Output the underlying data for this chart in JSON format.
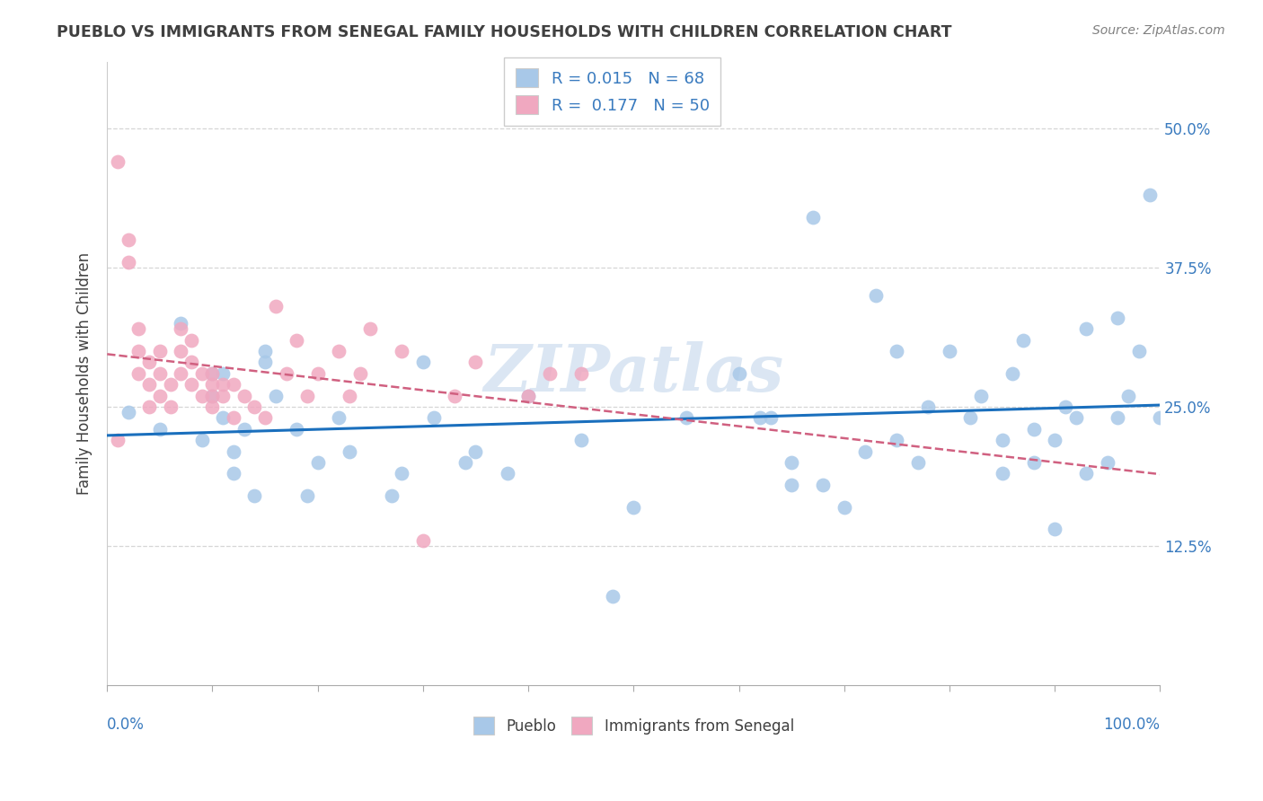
{
  "title": "PUEBLO VS IMMIGRANTS FROM SENEGAL FAMILY HOUSEHOLDS WITH CHILDREN CORRELATION CHART",
  "source": "Source: ZipAtlas.com",
  "ylabel": "Family Households with Children",
  "watermark": "ZIPatlas",
  "xlim": [
    0.0,
    1.0
  ],
  "ylim": [
    0.0,
    0.56
  ],
  "xtick_left_label": "0.0%",
  "xtick_right_label": "100.0%",
  "yticks": [
    0.125,
    0.25,
    0.375,
    0.5
  ],
  "ytick_labels": [
    "12.5%",
    "25.0%",
    "37.5%",
    "50.0%"
  ],
  "pueblo_R": "0.015",
  "pueblo_N": "68",
  "senegal_R": "0.177",
  "senegal_N": "50",
  "pueblo_color": "#a8c8e8",
  "senegal_color": "#f0a8c0",
  "pueblo_line_color": "#1a6fbd",
  "senegal_line_color": "#d06080",
  "legend_pueblo": "Pueblo",
  "legend_senegal": "Immigrants from Senegal",
  "pueblo_scatter_x": [
    0.02,
    0.05,
    0.07,
    0.09,
    0.1,
    0.1,
    0.11,
    0.11,
    0.12,
    0.12,
    0.13,
    0.14,
    0.15,
    0.15,
    0.16,
    0.18,
    0.19,
    0.2,
    0.22,
    0.23,
    0.27,
    0.28,
    0.3,
    0.31,
    0.34,
    0.35,
    0.38,
    0.4,
    0.45,
    0.48,
    0.5,
    0.55,
    0.6,
    0.62,
    0.65,
    0.65,
    0.68,
    0.7,
    0.72,
    0.73,
    0.75,
    0.75,
    0.77,
    0.78,
    0.8,
    0.82,
    0.83,
    0.85,
    0.85,
    0.86,
    0.87,
    0.88,
    0.88,
    0.9,
    0.9,
    0.91,
    0.92,
    0.93,
    0.93,
    0.95,
    0.96,
    0.96,
    0.97,
    0.98,
    0.99,
    1.0,
    0.63,
    0.67
  ],
  "pueblo_scatter_y": [
    0.245,
    0.23,
    0.325,
    0.22,
    0.26,
    0.28,
    0.28,
    0.24,
    0.21,
    0.19,
    0.23,
    0.17,
    0.29,
    0.3,
    0.26,
    0.23,
    0.17,
    0.2,
    0.24,
    0.21,
    0.17,
    0.19,
    0.29,
    0.24,
    0.2,
    0.21,
    0.19,
    0.26,
    0.22,
    0.08,
    0.16,
    0.24,
    0.28,
    0.24,
    0.18,
    0.2,
    0.18,
    0.16,
    0.21,
    0.35,
    0.22,
    0.3,
    0.2,
    0.25,
    0.3,
    0.24,
    0.26,
    0.19,
    0.22,
    0.28,
    0.31,
    0.2,
    0.23,
    0.14,
    0.22,
    0.25,
    0.24,
    0.19,
    0.32,
    0.2,
    0.24,
    0.33,
    0.26,
    0.3,
    0.44,
    0.24,
    0.24,
    0.42
  ],
  "senegal_scatter_x": [
    0.01,
    0.01,
    0.02,
    0.02,
    0.03,
    0.03,
    0.03,
    0.04,
    0.04,
    0.04,
    0.05,
    0.05,
    0.05,
    0.06,
    0.06,
    0.07,
    0.07,
    0.07,
    0.08,
    0.08,
    0.08,
    0.09,
    0.09,
    0.1,
    0.1,
    0.1,
    0.1,
    0.11,
    0.11,
    0.12,
    0.12,
    0.13,
    0.14,
    0.15,
    0.16,
    0.17,
    0.18,
    0.19,
    0.2,
    0.22,
    0.23,
    0.24,
    0.25,
    0.28,
    0.3,
    0.33,
    0.35,
    0.4,
    0.42,
    0.45
  ],
  "senegal_scatter_y": [
    0.47,
    0.22,
    0.38,
    0.4,
    0.28,
    0.3,
    0.32,
    0.25,
    0.27,
    0.29,
    0.26,
    0.28,
    0.3,
    0.25,
    0.27,
    0.28,
    0.3,
    0.32,
    0.27,
    0.29,
    0.31,
    0.26,
    0.28,
    0.25,
    0.26,
    0.27,
    0.28,
    0.26,
    0.27,
    0.24,
    0.27,
    0.26,
    0.25,
    0.24,
    0.34,
    0.28,
    0.31,
    0.26,
    0.28,
    0.3,
    0.26,
    0.28,
    0.32,
    0.3,
    0.13,
    0.26,
    0.29,
    0.26,
    0.28,
    0.28
  ],
  "background_color": "#ffffff",
  "grid_color": "#cccccc",
  "title_color": "#404040",
  "source_color": "#808080",
  "legend_text_color": "#3a7bbf",
  "axis_text_color": "#3a7bbf"
}
